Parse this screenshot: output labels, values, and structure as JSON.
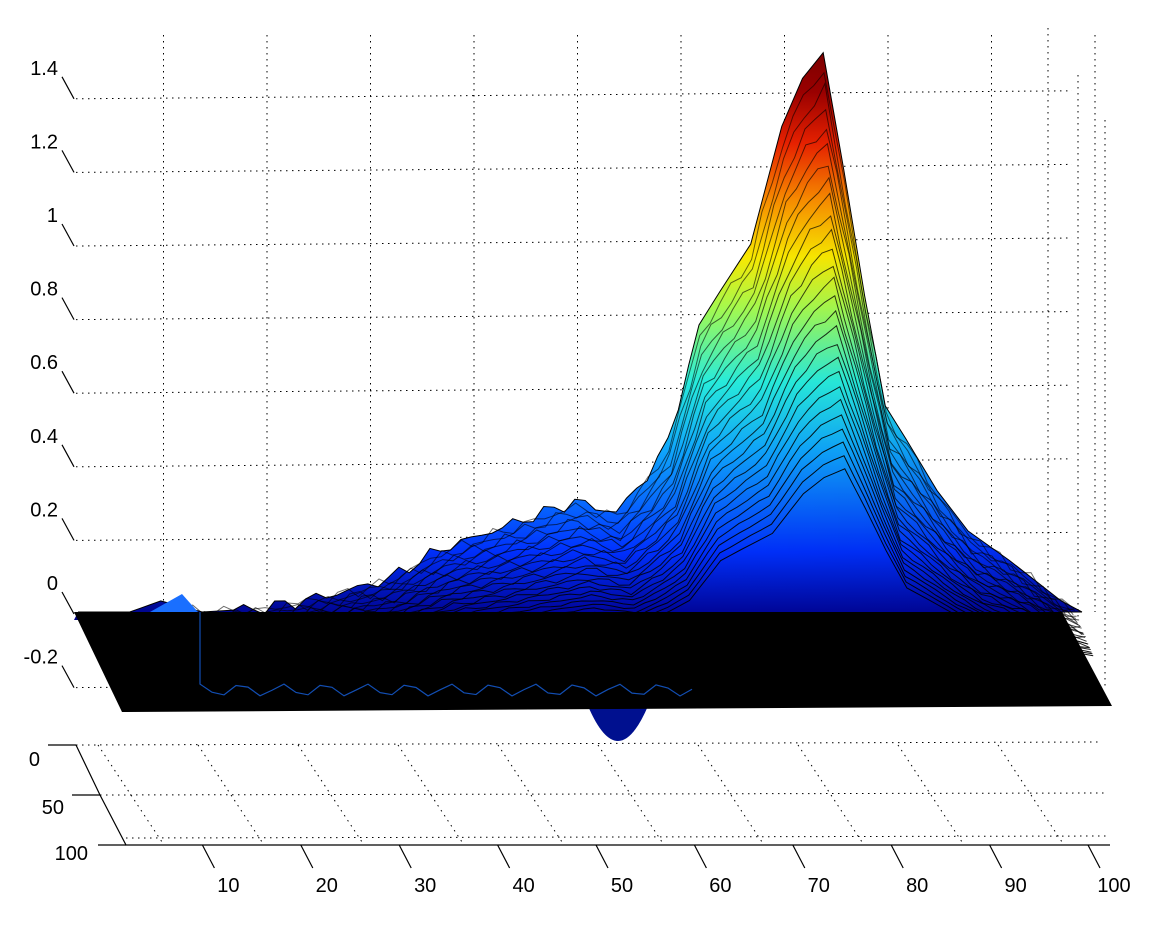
{
  "chart_data": {
    "type": "surface",
    "title": "",
    "xlabel": "",
    "ylabel": "",
    "zlabel": "",
    "colormap": "jet",
    "grid": true,
    "xlim": [
      0,
      100
    ],
    "ylim": [
      0,
      100
    ],
    "zlim": [
      -0.3,
      1.5
    ],
    "x_ticks": [
      "10",
      "20",
      "30",
      "40",
      "50",
      "60",
      "70",
      "80",
      "90",
      "100"
    ],
    "y_ticks": [
      "0",
      "50",
      "100"
    ],
    "z_ticks": [
      "1.4",
      "1.2",
      "1",
      "0.8",
      "0.6",
      "0.4",
      "0.2",
      "0",
      "-0.2"
    ],
    "peak": {
      "x": 70,
      "z": 1.53
    },
    "dip": {
      "x": 50,
      "z": -0.35
    },
    "front_profile": [
      {
        "x": 0,
        "z": 0
      },
      {
        "x": 5,
        "z": 0
      },
      {
        "x": 8,
        "z": 0.03
      },
      {
        "x": 12,
        "z": 0
      },
      {
        "x": 18,
        "z": 0.01
      },
      {
        "x": 25,
        "z": 0.05
      },
      {
        "x": 30,
        "z": 0.09
      },
      {
        "x": 35,
        "z": 0.17
      },
      {
        "x": 40,
        "z": 0.22
      },
      {
        "x": 45,
        "z": 0.27
      },
      {
        "x": 48,
        "z": 0.3
      },
      {
        "x": 52,
        "z": 0.27
      },
      {
        "x": 55,
        "z": 0.37
      },
      {
        "x": 57,
        "z": 0.46
      },
      {
        "x": 60,
        "z": 0.78
      },
      {
        "x": 62,
        "z": 0.87
      },
      {
        "x": 65,
        "z": 1.0
      },
      {
        "x": 68,
        "z": 1.32
      },
      {
        "x": 70,
        "z": 1.45
      },
      {
        "x": 72,
        "z": 1.52
      },
      {
        "x": 74,
        "z": 1.2
      },
      {
        "x": 76,
        "z": 0.86
      },
      {
        "x": 78,
        "z": 0.56
      },
      {
        "x": 80,
        "z": 0.47
      },
      {
        "x": 83,
        "z": 0.33
      },
      {
        "x": 86,
        "z": 0.22
      },
      {
        "x": 90,
        "z": 0.14
      },
      {
        "x": 95,
        "z": 0.03
      },
      {
        "x": 97,
        "z": 0
      }
    ]
  }
}
